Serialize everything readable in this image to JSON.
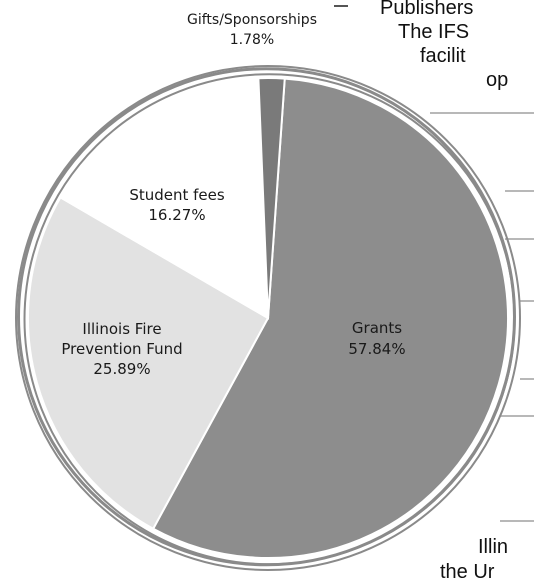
{
  "chart_data": {
    "type": "pie",
    "title": "",
    "slices": [
      {
        "label": "Grants",
        "value": 57.84,
        "display": "57.84%",
        "color": "#8d8d8d"
      },
      {
        "label": "Illinois Fire Prevention Fund",
        "value": 25.89,
        "display": "25.89%",
        "color": "#e2e2e2"
      },
      {
        "label": "Student fees",
        "value": 16.27,
        "display": "16.27%",
        "color": "#ffffff"
      },
      {
        "label": "Gifts/Sponsorships",
        "value": 1.78,
        "display": "1.78%",
        "color": "#7a7a7a"
      }
    ],
    "legend": "none"
  },
  "labels": {
    "grants": {
      "line1": "Grants",
      "value": "57.84%"
    },
    "fire_fund": {
      "line1": "Illinois Fire",
      "line2": "Prevention Fund",
      "value": "25.89%"
    },
    "student_fees": {
      "line1": "Student fees",
      "value": "16.27%"
    },
    "gifts": {
      "line1": "Gifts/Sponsorships",
      "value": "1.78%"
    }
  },
  "page_text": {
    "line1": "Publishers",
    "line2": "The IFS",
    "line3": "facilit",
    "line4": "op",
    "line5": "Illin",
    "line6": "the Ur"
  },
  "colors": {
    "ring": "#8a8a8a",
    "slice_stroke": "#ffffff"
  }
}
